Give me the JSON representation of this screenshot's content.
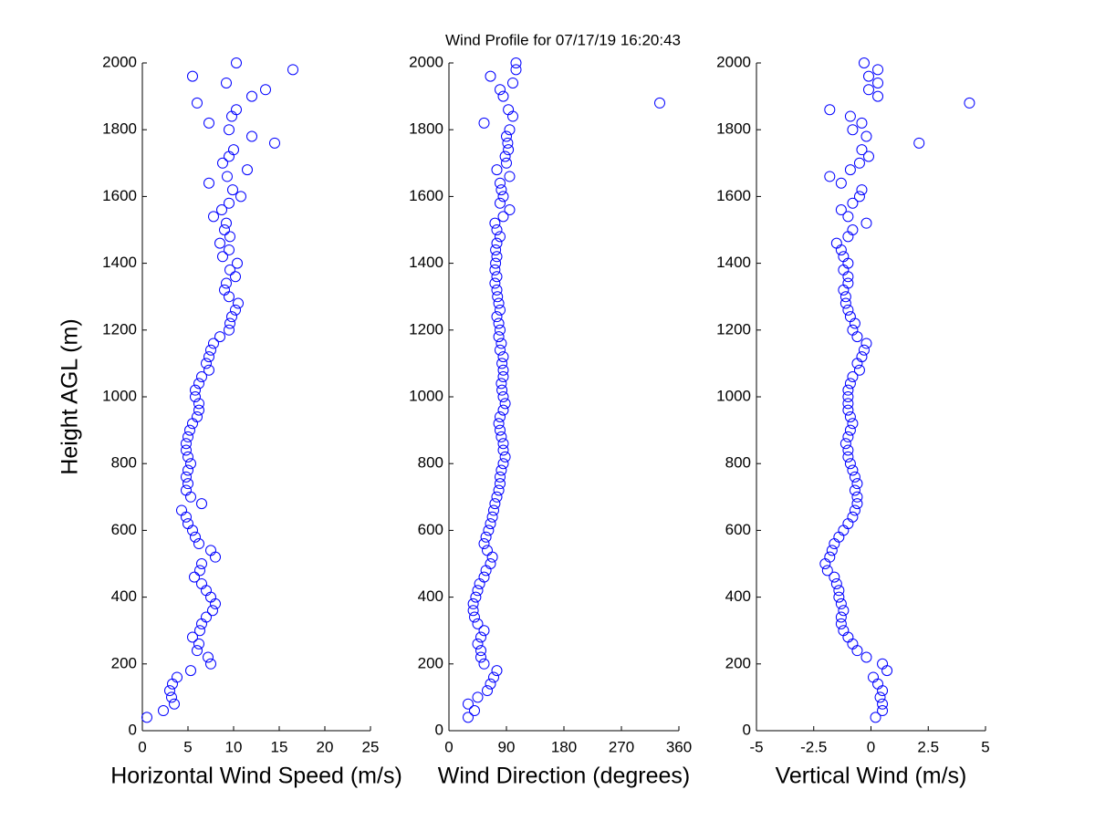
{
  "chart_data": [
    {
      "type": "scatter",
      "y_label": "Height AGL (m)",
      "x_label": "Horizontal Wind Speed (m/s)",
      "color": "#0000ff",
      "xlim": [
        0,
        25
      ],
      "xticks": [
        0,
        5,
        10,
        15,
        20,
        25
      ],
      "ylim": [
        0,
        2000
      ],
      "yticks": [
        0,
        200,
        400,
        600,
        800,
        1000,
        1200,
        1400,
        1600,
        1800,
        2000
      ],
      "x": [
        0.5,
        2.3,
        3.5,
        3.2,
        3.0,
        3.3,
        3.8,
        5.3,
        7.5,
        7.2,
        6.0,
        6.2,
        5.5,
        6.3,
        6.5,
        7.0,
        7.7,
        8.0,
        7.5,
        7.0,
        6.5,
        5.7,
        6.3,
        6.5,
        8.0,
        7.5,
        6.2,
        5.8,
        5.5,
        5.0,
        4.8,
        4.3,
        6.5,
        5.3,
        4.8,
        5.0,
        4.8,
        5.0,
        5.3,
        5.0,
        4.8,
        4.8,
        5.0,
        5.2,
        5.5,
        6.0,
        6.2,
        6.2,
        5.8,
        5.8,
        6.2,
        6.5,
        7.3,
        7.0,
        7.3,
        7.5,
        7.8,
        8.5,
        9.5,
        9.6,
        9.8,
        10.2,
        10.5,
        9.5,
        9.0,
        9.2,
        10.2,
        9.6,
        10.4,
        8.8,
        9.5,
        8.5,
        9.6,
        9.0,
        9.2,
        7.8,
        8.7,
        9.5,
        10.8,
        9.9,
        7.3,
        9.3,
        11.5,
        8.8,
        9.5,
        10.0,
        14.5,
        12.0,
        9.5,
        7.3,
        9.8,
        10.3,
        6.0,
        12.0,
        13.5,
        9.2,
        5.5,
        16.5,
        10.3
      ],
      "y": [
        40,
        60,
        80,
        100,
        120,
        140,
        160,
        180,
        200,
        220,
        240,
        260,
        280,
        300,
        320,
        340,
        360,
        380,
        400,
        420,
        440,
        460,
        480,
        500,
        520,
        540,
        560,
        580,
        600,
        620,
        640,
        660,
        680,
        700,
        720,
        740,
        760,
        780,
        800,
        820,
        840,
        860,
        880,
        900,
        920,
        940,
        960,
        980,
        1000,
        1020,
        1040,
        1060,
        1080,
        1100,
        1120,
        1140,
        1160,
        1180,
        1200,
        1220,
        1240,
        1260,
        1280,
        1300,
        1320,
        1340,
        1360,
        1380,
        1400,
        1420,
        1440,
        1460,
        1480,
        1500,
        1520,
        1540,
        1560,
        1580,
        1600,
        1620,
        1640,
        1660,
        1680,
        1700,
        1720,
        1740,
        1760,
        1780,
        1800,
        1820,
        1840,
        1860,
        1880,
        1900,
        1920,
        1940,
        1960,
        1980,
        2000
      ]
    },
    {
      "type": "scatter",
      "title": "Wind Profile for  07/17/19 16:20:43",
      "x_label": "Wind Direction (degrees)",
      "color": "#0000ff",
      "xlim": [
        0,
        360
      ],
      "xticks": [
        0,
        90,
        180,
        270,
        360
      ],
      "ylim": [
        0,
        2000
      ],
      "yticks": [
        0,
        200,
        400,
        600,
        800,
        1000,
        1200,
        1400,
        1600,
        1800,
        2000
      ],
      "x": [
        30,
        40,
        30,
        45,
        60,
        65,
        70,
        75,
        55,
        50,
        50,
        45,
        50,
        55,
        45,
        40,
        38,
        38,
        42,
        45,
        48,
        55,
        58,
        65,
        68,
        60,
        55,
        58,
        62,
        65,
        68,
        70,
        72,
        75,
        78,
        80,
        80,
        82,
        85,
        88,
        85,
        85,
        82,
        80,
        78,
        80,
        85,
        88,
        85,
        83,
        82,
        85,
        85,
        83,
        85,
        80,
        82,
        78,
        80,
        78,
        75,
        80,
        78,
        76,
        75,
        72,
        75,
        72,
        73,
        75,
        73,
        75,
        80,
        75,
        72,
        85,
        95,
        80,
        85,
        82,
        80,
        95,
        75,
        90,
        88,
        93,
        92,
        90,
        95,
        55,
        100,
        93,
        330,
        85,
        80,
        100,
        65,
        105,
        105
      ],
      "y": [
        40,
        60,
        80,
        100,
        120,
        140,
        160,
        180,
        200,
        220,
        240,
        260,
        280,
        300,
        320,
        340,
        360,
        380,
        400,
        420,
        440,
        460,
        480,
        500,
        520,
        540,
        560,
        580,
        600,
        620,
        640,
        660,
        680,
        700,
        720,
        740,
        760,
        780,
        800,
        820,
        840,
        860,
        880,
        900,
        920,
        940,
        960,
        980,
        1000,
        1020,
        1040,
        1060,
        1080,
        1100,
        1120,
        1140,
        1160,
        1180,
        1200,
        1220,
        1240,
        1260,
        1280,
        1300,
        1320,
        1340,
        1360,
        1380,
        1400,
        1420,
        1440,
        1460,
        1480,
        1500,
        1520,
        1540,
        1560,
        1580,
        1600,
        1620,
        1640,
        1660,
        1680,
        1700,
        1720,
        1740,
        1760,
        1780,
        1800,
        1820,
        1840,
        1860,
        1880,
        1900,
        1920,
        1940,
        1960,
        1980,
        2000
      ]
    },
    {
      "type": "scatter",
      "x_label": "Vertical Wind (m/s)",
      "color": "#0000ff",
      "xlim": [
        -5,
        5
      ],
      "xticks": [
        -5,
        -2.5,
        0,
        2.5,
        5
      ],
      "ylim": [
        0,
        2000
      ],
      "yticks": [
        0,
        200,
        400,
        600,
        800,
        1000,
        1200,
        1400,
        1600,
        1800,
        2000
      ],
      "x": [
        0.2,
        0.5,
        0.5,
        0.4,
        0.5,
        0.3,
        0.1,
        0.7,
        0.5,
        -0.2,
        -0.6,
        -0.8,
        -1.0,
        -1.2,
        -1.3,
        -1.3,
        -1.2,
        -1.3,
        -1.4,
        -1.4,
        -1.5,
        -1.6,
        -1.9,
        -2.0,
        -1.8,
        -1.7,
        -1.6,
        -1.4,
        -1.2,
        -1.0,
        -0.8,
        -0.7,
        -0.6,
        -0.6,
        -0.7,
        -0.6,
        -0.7,
        -0.8,
        -0.9,
        -1.0,
        -1.0,
        -1.1,
        -1.0,
        -0.9,
        -0.8,
        -0.9,
        -1.0,
        -1.0,
        -1.0,
        -1.0,
        -0.9,
        -0.8,
        -0.5,
        -0.6,
        -0.4,
        -0.3,
        -0.2,
        -0.6,
        -0.8,
        -0.7,
        -0.9,
        -1.0,
        -1.1,
        -1.1,
        -1.2,
        -1.0,
        -1.0,
        -1.2,
        -1.0,
        -1.2,
        -1.3,
        -1.5,
        -1.0,
        -0.8,
        -0.2,
        -1.0,
        -1.3,
        -0.8,
        -0.5,
        -0.4,
        -1.3,
        -1.8,
        -0.9,
        -0.5,
        -0.1,
        -0.4,
        2.1,
        -0.2,
        -0.8,
        -0.4,
        -0.9,
        -1.8,
        4.3,
        0.3,
        -0.1,
        0.3,
        -0.1,
        0.3,
        -0.3
      ],
      "y": [
        40,
        60,
        80,
        100,
        120,
        140,
        160,
        180,
        200,
        220,
        240,
        260,
        280,
        300,
        320,
        340,
        360,
        380,
        400,
        420,
        440,
        460,
        480,
        500,
        520,
        540,
        560,
        580,
        600,
        620,
        640,
        660,
        680,
        700,
        720,
        740,
        760,
        780,
        800,
        820,
        840,
        860,
        880,
        900,
        920,
        940,
        960,
        980,
        1000,
        1020,
        1040,
        1060,
        1080,
        1100,
        1120,
        1140,
        1160,
        1180,
        1200,
        1220,
        1240,
        1260,
        1280,
        1300,
        1320,
        1340,
        1360,
        1380,
        1400,
        1420,
        1440,
        1460,
        1480,
        1500,
        1520,
        1540,
        1560,
        1580,
        1600,
        1620,
        1640,
        1660,
        1680,
        1700,
        1720,
        1740,
        1760,
        1780,
        1800,
        1820,
        1840,
        1860,
        1880,
        1900,
        1920,
        1940,
        1960,
        1980,
        2000
      ]
    }
  ]
}
